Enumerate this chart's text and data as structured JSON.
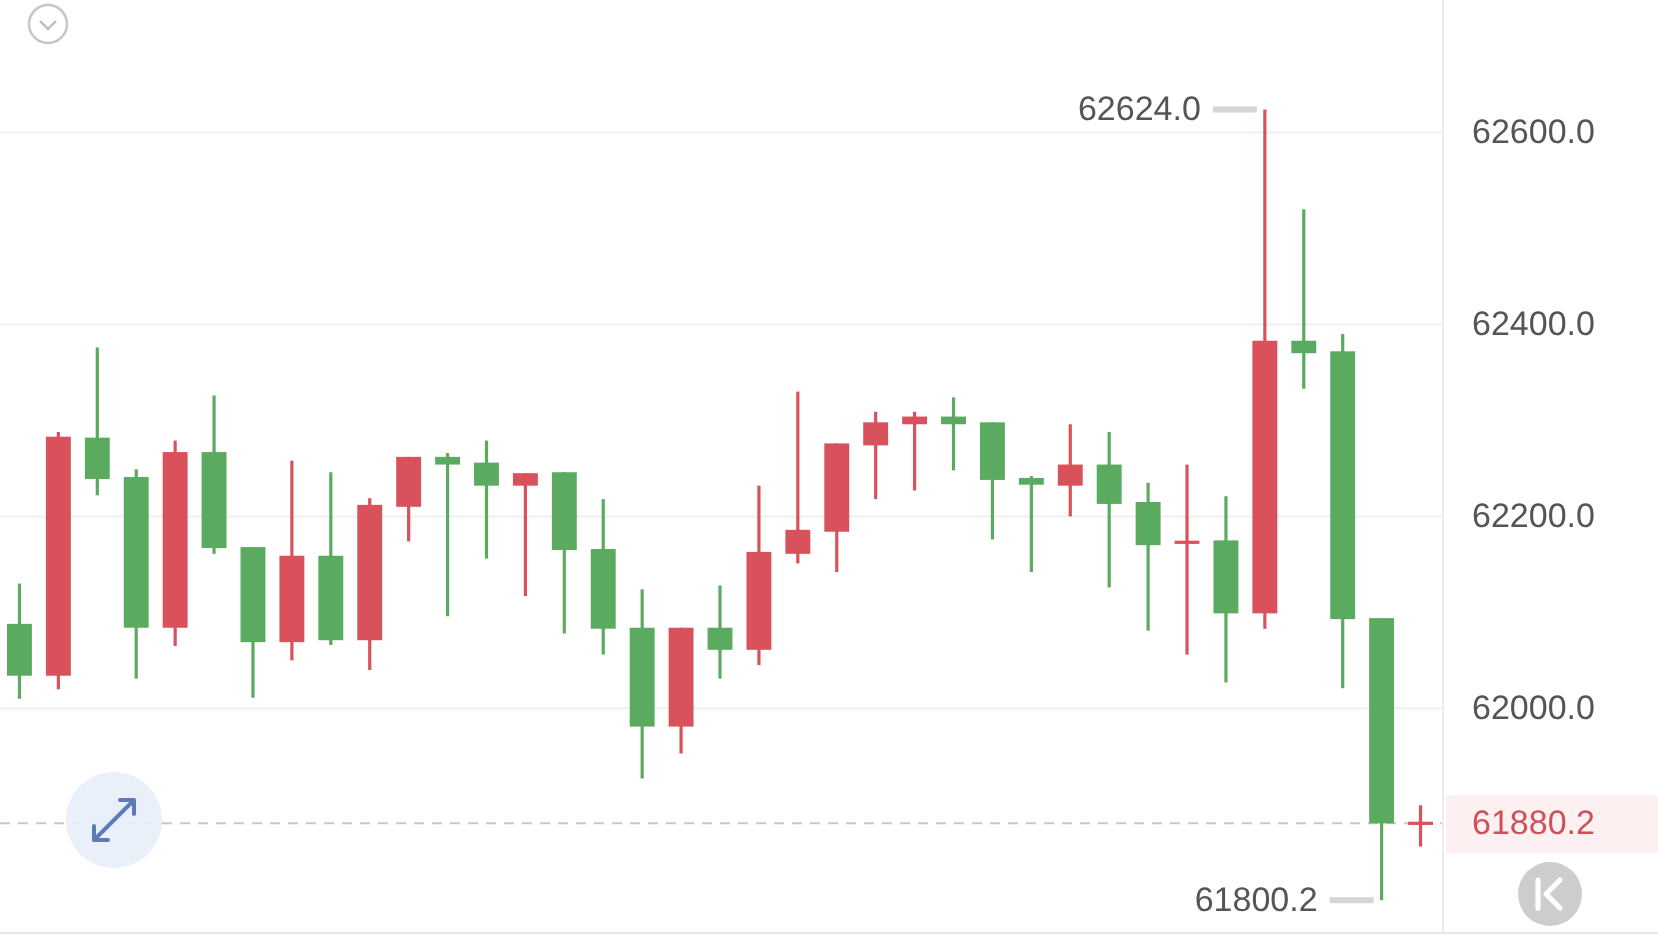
{
  "chart_data": {
    "type": "candlestick",
    "categories": [
      null,
      null,
      null,
      null,
      null,
      null,
      null,
      null,
      null,
      null,
      null,
      null,
      null,
      null,
      null,
      null,
      null,
      null,
      null,
      null,
      null,
      null,
      null,
      null,
      null,
      null,
      null,
      null,
      null,
      null,
      null,
      null,
      null,
      null,
      null,
      null,
      null
    ],
    "ohlc": [
      [
        62088,
        62130,
        62010,
        62034
      ],
      [
        62034,
        62288,
        62020,
        62283
      ],
      [
        62282,
        62376,
        62222,
        62239
      ],
      [
        62241,
        62249,
        62031,
        62084
      ],
      [
        62084,
        62279,
        62065,
        62267
      ],
      [
        62267,
        62326,
        62161,
        62167
      ],
      [
        62168,
        62168,
        62011,
        62069
      ],
      [
        62069,
        62258,
        62050,
        62159
      ],
      [
        62159,
        62246,
        62066,
        62071
      ],
      [
        62071,
        62219,
        62040,
        62212
      ],
      [
        62210,
        62262,
        62174,
        62262
      ],
      [
        62262,
        62266,
        62096,
        62254
      ],
      [
        62256,
        62279,
        62156,
        62232
      ],
      [
        62232,
        62245,
        62117,
        62245
      ],
      [
        62246,
        62246,
        62078,
        62165
      ],
      [
        62166,
        62218,
        62056,
        62083
      ],
      [
        62084,
        62124,
        61927,
        61981
      ],
      [
        61981,
        62084,
        61953,
        62084
      ],
      [
        62084,
        62128,
        62031,
        62061
      ],
      [
        62061,
        62232,
        62045,
        62163
      ],
      [
        62161,
        62330,
        62151,
        62186
      ],
      [
        62184,
        62276,
        62142,
        62276
      ],
      [
        62274,
        62309,
        62218,
        62298
      ],
      [
        62296,
        62309,
        62227,
        62304
      ],
      [
        62304,
        62324,
        62248,
        62296
      ],
      [
        62298,
        62298,
        62176,
        62238
      ],
      [
        62240,
        62242,
        62142,
        62233
      ],
      [
        62232,
        62296,
        62200,
        62254
      ],
      [
        62254,
        62288,
        62126,
        62213
      ],
      [
        62215,
        62235,
        62081,
        62170
      ],
      [
        62173,
        62254,
        62056,
        62173
      ],
      [
        62175,
        62221,
        62027,
        62099
      ],
      [
        62099,
        62624,
        62083,
        62383
      ],
      [
        62383,
        62520,
        62333,
        62370
      ],
      [
        62372,
        62390,
        62021,
        62093
      ],
      [
        62094,
        62094,
        61800.2,
        61880.2
      ],
      [
        61880.2,
        61899,
        61856,
        61880.2
      ]
    ],
    "colors": [
      "#5aab5f",
      "#d8515b",
      "#5aab5f",
      "#5aab5f",
      "#d8515b",
      "#5aab5f",
      "#5aab5f",
      "#d8515b",
      "#5aab5f",
      "#d8515b",
      "#d8515b",
      "#5aab5f",
      "#5aab5f",
      "#d8515b",
      "#5aab5f",
      "#5aab5f",
      "#5aab5f",
      "#d8515b",
      "#5aab5f",
      "#d8515b",
      "#d8515b",
      "#d8515b",
      "#d8515b",
      "#d8515b",
      "#5aab5f",
      "#5aab5f",
      "#5aab5f",
      "#d8515b",
      "#5aab5f",
      "#5aab5f",
      "#d8515b",
      "#5aab5f",
      "#d8515b",
      "#5aab5f",
      "#5aab5f",
      "#5aab5f",
      "#d8515b"
    ],
    "ylim": [
      61767,
      62738
    ],
    "yticks": [
      {
        "value": 62000,
        "label": "62000.0"
      },
      {
        "value": 62200,
        "label": "62200.0"
      },
      {
        "value": 62400,
        "label": "62400.0"
      },
      {
        "value": 62600,
        "label": "62600.0"
      }
    ],
    "grid": "y",
    "tick_labels": "y",
    "ref_lines": [
      {
        "axis": "y",
        "value": 61880.2,
        "label": "61880.2",
        "color": "#c8c8c8",
        "line_style": "dashed"
      }
    ],
    "annotations": [
      "62624.0",
      "61800.2"
    ]
  }
}
